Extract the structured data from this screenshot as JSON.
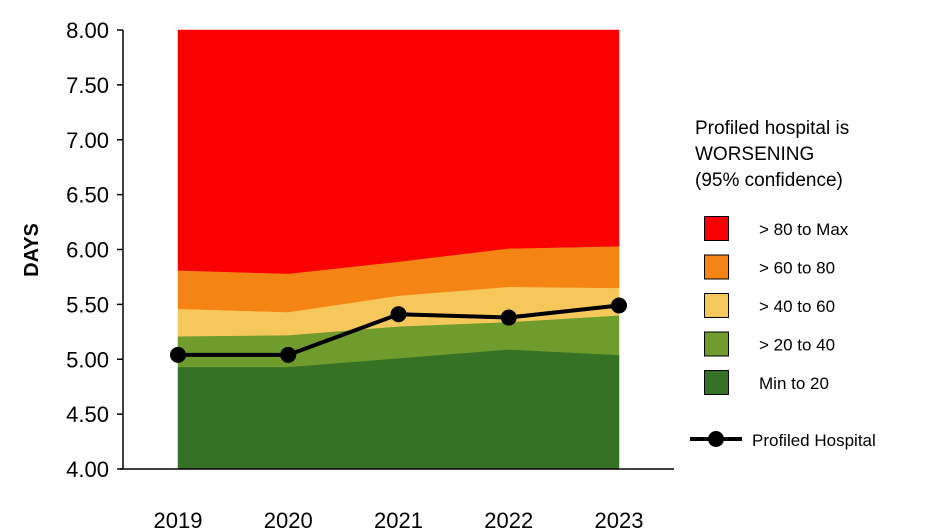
{
  "chart_data": {
    "type": "area",
    "ylabel": "DAYS",
    "xlabel": "",
    "ylim": [
      4.0,
      8.0
    ],
    "y_ticks": [
      "4.00",
      "4.50",
      "5.00",
      "5.50",
      "6.00",
      "6.50",
      "7.00",
      "7.50",
      "8.00"
    ],
    "categories": [
      "2019",
      "2020",
      "2021",
      "2022",
      "2023"
    ],
    "bands": [
      {
        "name": "Min to 20",
        "color": "#357226",
        "upper": [
          4.93,
          4.93,
          5.01,
          5.09,
          5.04
        ]
      },
      {
        "name": "> 20 to 40",
        "color": "#6f9c2d",
        "upper": [
          5.21,
          5.22,
          5.3,
          5.34,
          5.4
        ]
      },
      {
        "name": "> 40 to 60",
        "color": "#f6c85c",
        "upper": [
          5.46,
          5.43,
          5.58,
          5.66,
          5.65
        ]
      },
      {
        "name": "> 60 to 80",
        "color": "#f48515",
        "upper": [
          5.81,
          5.78,
          5.89,
          6.01,
          6.03
        ]
      },
      {
        "name": "> 80 to Max",
        "color": "#fb0000",
        "upper": [
          8.0,
          8.0,
          8.0,
          8.0,
          8.0
        ]
      }
    ],
    "series": [
      {
        "name": "Profiled Hospital",
        "color": "#000000",
        "values": [
          5.04,
          5.04,
          5.41,
          5.38,
          5.49
        ]
      }
    ],
    "status_lines": [
      "Profiled hospital is",
      "WORSENING",
      "(95% confidence)"
    ],
    "legend_position": "right"
  }
}
